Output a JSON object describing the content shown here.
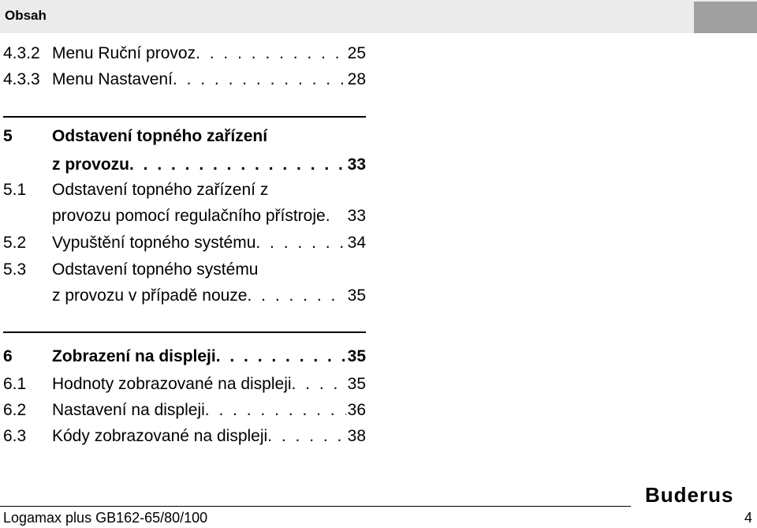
{
  "header": {
    "title": "Obsah"
  },
  "toc": {
    "entries": [
      {
        "num": "4.3.2",
        "title": "Menu Ruční provoz",
        "dots": ". . . . . . . . . . . . . . . . . .",
        "page": "25"
      },
      {
        "num": "4.3.3",
        "title": "Menu Nastavení",
        "dots": ". . . . . . . . . . . . . . . . . . . . . .",
        "page": "28"
      },
      {
        "num": "5",
        "title": "Odstavení topného zařízení",
        "dots": "",
        "page": ""
      },
      {
        "num": "",
        "title": "z provozu",
        "dots": ". . . . . . . . . . . . . . . . . . . . . . . . .",
        "page": "33"
      },
      {
        "num": "5.1",
        "title": "Odstavení topného zařízení z",
        "dots": "",
        "page": ""
      },
      {
        "num": "",
        "title": "provozu pomocí regulačního přístroje",
        "dots": " . ",
        "page": "33"
      },
      {
        "num": "5.2",
        "title": "Vypuštění topného systému",
        "dots": ". . . . . . . . . .",
        "page": "34"
      },
      {
        "num": "5.3",
        "title": "Odstavení topného systému",
        "dots": "",
        "page": ""
      },
      {
        "num": "",
        "title": "z provozu v případě nouze",
        "dots": ". . . . . . . . . . .",
        "page": "35"
      },
      {
        "num": "6",
        "title": "Zobrazení na displeji",
        "dots": ". . . . . . . . . . . . .",
        "page": "35"
      },
      {
        "num": "6.1",
        "title": "Hodnoty zobrazované na displeji",
        "dots": ". . . . . .",
        "page": "35"
      },
      {
        "num": "6.2",
        "title": "Nastavení na displeji",
        "dots": ". . . . . . . . . . . . . . . . .",
        "page": "36"
      },
      {
        "num": "6.3",
        "title": "Kódy zobrazované na displeji",
        "dots": ". . . . . . . . .",
        "page": "38"
      }
    ]
  },
  "footer": {
    "left": "Logamax plus GB162-65/80/100",
    "page": "4",
    "logo": "Buderus"
  }
}
